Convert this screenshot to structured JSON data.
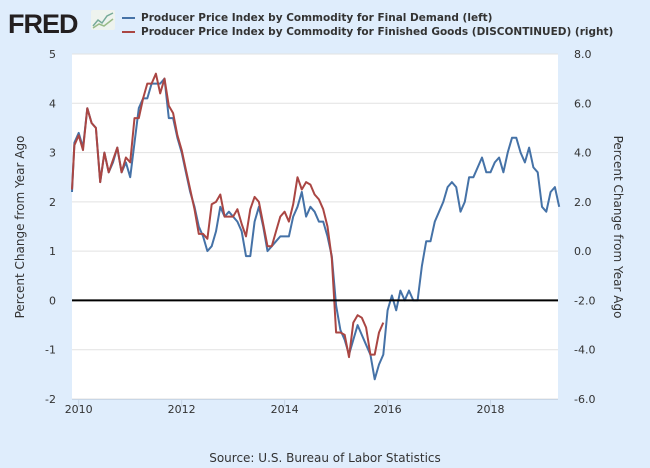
{
  "header": {
    "logo": "FRED",
    "logo_icon": "line-chart-icon"
  },
  "legend": [
    {
      "label": "Producer Price Index by Commodity for Final Demand (left)",
      "color": "#4572a7"
    },
    {
      "label": "Producer Price Index by Commodity for Finished Goods (DISCONTINUED) (right)",
      "color": "#aa4643"
    }
  ],
  "source": "Source: U.S. Bureau of Labor Statistics",
  "chart_data": {
    "type": "line",
    "title": "",
    "xlabel": "",
    "ylabel_left": "Percent Change from Year Ago",
    "ylabel_right": "Percent Change from Year Ago",
    "x_start": "2009-11",
    "x_end": "2019-05",
    "frequency": "monthly",
    "x_ticks": [
      "2010",
      "2012",
      "2014",
      "2016",
      "2018"
    ],
    "ylim_left": [
      -2,
      5
    ],
    "ylim_right": [
      -6,
      8
    ],
    "y_ticks_left": [
      "5",
      "4",
      "3",
      "2",
      "1",
      "0",
      "-1",
      "-2"
    ],
    "y_ticks_right": [
      "8.0",
      "6.0",
      "4.0",
      "2.0",
      "0.0",
      "-2.0",
      "-4.0",
      "-6.0"
    ],
    "grid": true,
    "reference_line_left": 0,
    "series": [
      {
        "name": "Producer Price Index by Commodity for Final Demand (left)",
        "axis": "left",
        "color": "#4572a7",
        "start": "2009-11",
        "values": [
          2.2,
          3.2,
          3.4,
          3.1,
          3.9,
          3.6,
          3.5,
          2.4,
          3.0,
          2.6,
          2.8,
          3.1,
          2.6,
          2.8,
          2.5,
          3.2,
          3.9,
          4.1,
          4.1,
          4.4,
          4.4,
          4.4,
          4.5,
          3.7,
          3.7,
          3.3,
          3.0,
          2.6,
          2.2,
          1.9,
          1.5,
          1.3,
          1.0,
          1.1,
          1.4,
          1.9,
          1.7,
          1.8,
          1.7,
          1.6,
          1.4,
          0.9,
          0.9,
          1.6,
          1.9,
          1.5,
          1.0,
          1.1,
          1.2,
          1.3,
          1.3,
          1.3,
          1.7,
          1.9,
          2.2,
          1.7,
          1.9,
          1.8,
          1.6,
          1.6,
          1.3,
          0.9,
          -0.1,
          -0.6,
          -0.8,
          -1.1,
          -0.8,
          -0.5,
          -0.7,
          -0.9,
          -1.1,
          -1.6,
          -1.3,
          -1.1,
          -0.2,
          0.1,
          -0.2,
          0.2,
          0.0,
          0.2,
          0.0,
          0.0,
          0.7,
          1.2,
          1.2,
          1.6,
          1.8,
          2.0,
          2.3,
          2.4,
          2.3,
          1.8,
          2.0,
          2.5,
          2.5,
          2.7,
          2.9,
          2.6,
          2.6,
          2.8,
          2.9,
          2.6,
          3.0,
          3.3,
          3.3,
          3.0,
          2.8,
          3.1,
          2.7,
          2.6,
          1.9,
          1.8,
          2.2,
          2.3,
          1.9
        ]
      },
      {
        "name": "Producer Price Index by Commodity for Finished Goods (DISCONTINUED) (right)",
        "axis": "right",
        "color": "#aa4643",
        "start": "2009-11",
        "values": [
          2.5,
          4.3,
          4.7,
          4.1,
          5.8,
          5.2,
          5.0,
          2.8,
          4.0,
          3.2,
          3.7,
          4.2,
          3.2,
          3.8,
          3.6,
          5.4,
          5.4,
          6.2,
          6.8,
          6.8,
          7.2,
          6.4,
          7.0,
          5.9,
          5.6,
          4.7,
          4.1,
          3.3,
          2.5,
          1.7,
          0.7,
          0.7,
          0.5,
          1.9,
          2.0,
          2.3,
          1.4,
          1.4,
          1.4,
          1.7,
          1.1,
          0.6,
          1.7,
          2.2,
          2.0,
          1.1,
          0.2,
          0.2,
          0.8,
          1.4,
          1.6,
          1.2,
          1.9,
          3.0,
          2.5,
          2.8,
          2.7,
          2.3,
          2.1,
          1.7,
          1.0,
          -0.3,
          -3.3,
          -3.3,
          -3.4,
          -4.3,
          -2.9,
          -2.6,
          -2.7,
          -3.1,
          -4.2,
          -4.2,
          -3.3,
          -2.9
        ]
      }
    ]
  }
}
